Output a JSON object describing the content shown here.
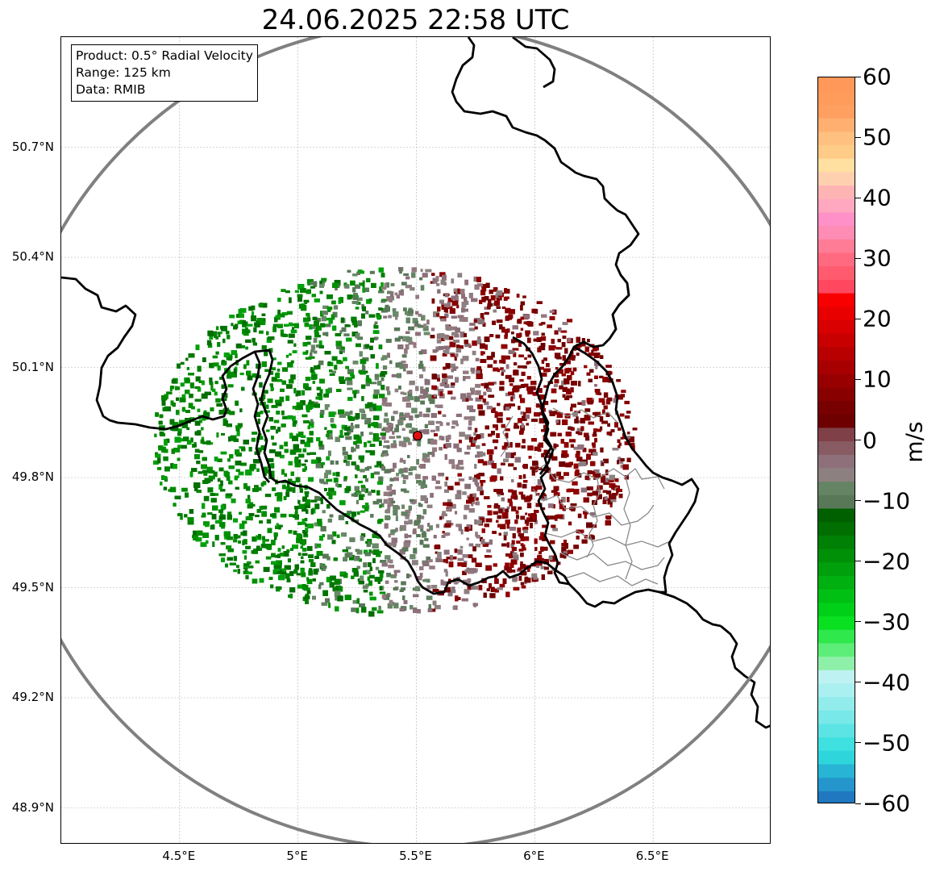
{
  "title": "24.06.2025 22:58 UTC",
  "info_box": {
    "product": "Product: 0.5° Radial Velocity",
    "range": "Range: 125 km",
    "data": "Data: RMIB"
  },
  "map": {
    "lon_range": [
      4.0,
      7.0
    ],
    "lat_range": [
      48.8,
      51.0
    ],
    "radar_site": {
      "lon": 5.505,
      "lat": 49.914
    },
    "range_ring_color": "#808080",
    "border_color": "#000000",
    "grid_color": "#b0b0b0",
    "lat_ticks": [
      {
        "value": 50.7,
        "label": "50.7°N"
      },
      {
        "value": 50.4,
        "label": "50.4°N"
      },
      {
        "value": 50.1,
        "label": "50.1°N"
      },
      {
        "value": 49.8,
        "label": "49.8°N"
      },
      {
        "value": 49.5,
        "label": "49.5°N"
      },
      {
        "value": 49.2,
        "label": "49.2°N"
      },
      {
        "value": 48.9,
        "label": "48.9°N"
      }
    ],
    "lon_ticks": [
      {
        "value": 4.5,
        "label": "4.5°E"
      },
      {
        "value": 5.0,
        "label": "5°E"
      },
      {
        "value": 5.5,
        "label": "5.5°E"
      },
      {
        "value": 6.0,
        "label": "6°E"
      },
      {
        "value": 6.5,
        "label": "6.5°E"
      }
    ]
  },
  "colorbar": {
    "unit": "m/s",
    "min": -60,
    "max": 60,
    "ticks": [
      60,
      50,
      40,
      30,
      20,
      10,
      0,
      -10,
      -20,
      -30,
      -40,
      -50,
      -60
    ],
    "tick_labels": [
      "60",
      "50",
      "40",
      "30",
      "20",
      "10",
      "0",
      "−10",
      "−20",
      "−30",
      "−40",
      "−50",
      "−60"
    ],
    "colors_bottom_to_top": [
      "#1f78c0",
      "#2496cc",
      "#28b4d4",
      "#2ed6dc",
      "#3ee0e0",
      "#5ce4e4",
      "#78e8e8",
      "#92ecec",
      "#aaf0f0",
      "#bef2f2",
      "#8ef0a8",
      "#5cee78",
      "#2ee84c",
      "#08e020",
      "#00d018",
      "#00c014",
      "#00b010",
      "#00a00c",
      "#009008",
      "#008004",
      "#006e00",
      "#006000",
      "#587858",
      "#648464",
      "#8c8080",
      "#8e707a",
      "#885a62",
      "#804048",
      "#6e0000",
      "#780000",
      "#880000",
      "#980000",
      "#a80000",
      "#b80000",
      "#c80000",
      "#d80000",
      "#e80000",
      "#f80000",
      "#ff4860",
      "#ff5a6e",
      "#ff6a80",
      "#ff7c96",
      "#ff8cb4",
      "#ff90c8",
      "#ffa8c0",
      "#ffb4b4",
      "#ffd0b0",
      "#ffe0a0",
      "#ffcc88",
      "#ffc080",
      "#ffb070",
      "#ffa060",
      "#ff9c5c",
      "#ff9858"
    ]
  }
}
